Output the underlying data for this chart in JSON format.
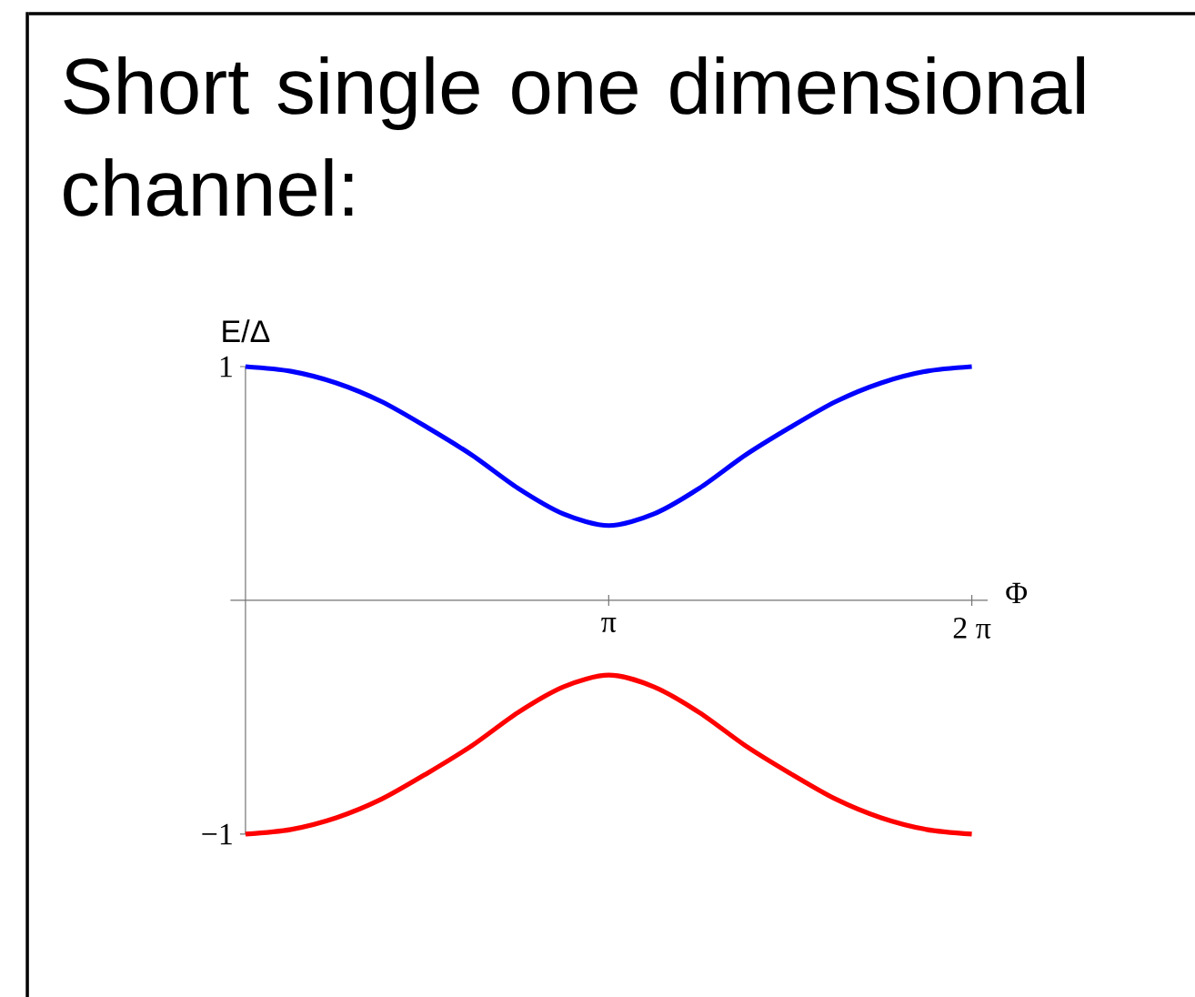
{
  "chart_data": {
    "type": "line",
    "title": "Short single one dimensional channel:",
    "xlabel": "Φ",
    "ylabel": "E/Δ",
    "x": [
      0,
      0.393,
      0.785,
      1.178,
      1.571,
      1.963,
      2.356,
      2.749,
      3.142,
      3.534,
      3.927,
      4.32,
      4.712,
      5.105,
      5.498,
      5.89,
      6.283
    ],
    "series": [
      {
        "color": "#0000ff",
        "values": [
          1,
          0.98,
          0.93,
          0.85,
          0.74,
          0.62,
          0.48,
          0.37,
          0.32,
          0.37,
          0.48,
          0.62,
          0.74,
          0.85,
          0.93,
          0.98,
          1
        ]
      },
      {
        "color": "#ff0000",
        "values": [
          -1,
          -0.98,
          -0.93,
          -0.85,
          -0.74,
          -0.62,
          -0.48,
          -0.37,
          -0.32,
          -0.37,
          -0.48,
          -0.62,
          -0.74,
          -0.85,
          -0.93,
          -0.98,
          -1
        ]
      }
    ],
    "xlim": [
      -0.13,
      6.42
    ],
    "ylim": [
      -1,
      1
    ],
    "xticks": [
      {
        "value": 3.142,
        "label": "π"
      },
      {
        "value": 6.283,
        "label": "2 π"
      }
    ],
    "yticks": [
      {
        "value": -1,
        "label": "−1"
      },
      {
        "value": 1,
        "label": "1"
      }
    ],
    "marker": "none",
    "line_style": "solid"
  }
}
